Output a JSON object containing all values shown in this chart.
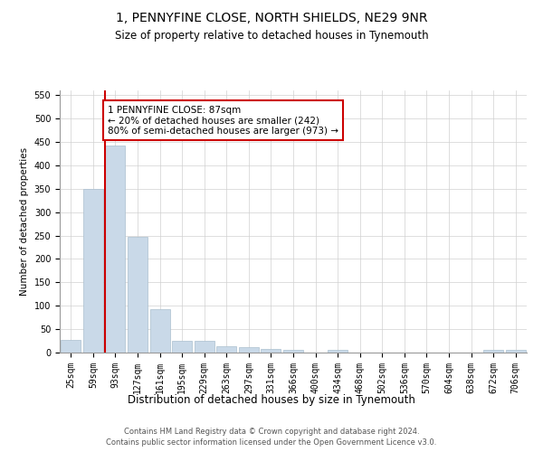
{
  "title": "1, PENNYFINE CLOSE, NORTH SHIELDS, NE29 9NR",
  "subtitle": "Size of property relative to detached houses in Tynemouth",
  "xlabel": "Distribution of detached houses by size in Tynemouth",
  "ylabel": "Number of detached properties",
  "bar_labels": [
    "25sqm",
    "59sqm",
    "93sqm",
    "127sqm",
    "161sqm",
    "195sqm",
    "229sqm",
    "263sqm",
    "297sqm",
    "331sqm",
    "366sqm",
    "400sqm",
    "434sqm",
    "468sqm",
    "502sqm",
    "536sqm",
    "570sqm",
    "604sqm",
    "638sqm",
    "672sqm",
    "706sqm"
  ],
  "bar_values": [
    27,
    350,
    443,
    248,
    92,
    25,
    25,
    14,
    11,
    8,
    6,
    0,
    5,
    0,
    0,
    0,
    0,
    0,
    0,
    5,
    5
  ],
  "bar_color": "#c9d9e8",
  "bar_edge_color": "#aabfcf",
  "vline_index": 2,
  "vline_color": "#cc0000",
  "annotation_text": "1 PENNYFINE CLOSE: 87sqm\n← 20% of detached houses are smaller (242)\n80% of semi-detached houses are larger (973) →",
  "annotation_box_color": "#ffffff",
  "annotation_box_edge": "#cc0000",
  "ylim": [
    0,
    560
  ],
  "yticks": [
    0,
    50,
    100,
    150,
    200,
    250,
    300,
    350,
    400,
    450,
    500,
    550
  ],
  "footer1": "Contains HM Land Registry data © Crown copyright and database right 2024.",
  "footer2": "Contains public sector information licensed under the Open Government Licence v3.0.",
  "bg_color": "#ffffff",
  "grid_color": "#d0d0d0",
  "title_fontsize": 10,
  "subtitle_fontsize": 8.5,
  "ylabel_fontsize": 7.5,
  "xlabel_fontsize": 8.5,
  "tick_fontsize": 7,
  "annotation_fontsize": 7.5,
  "footer_fontsize": 6
}
